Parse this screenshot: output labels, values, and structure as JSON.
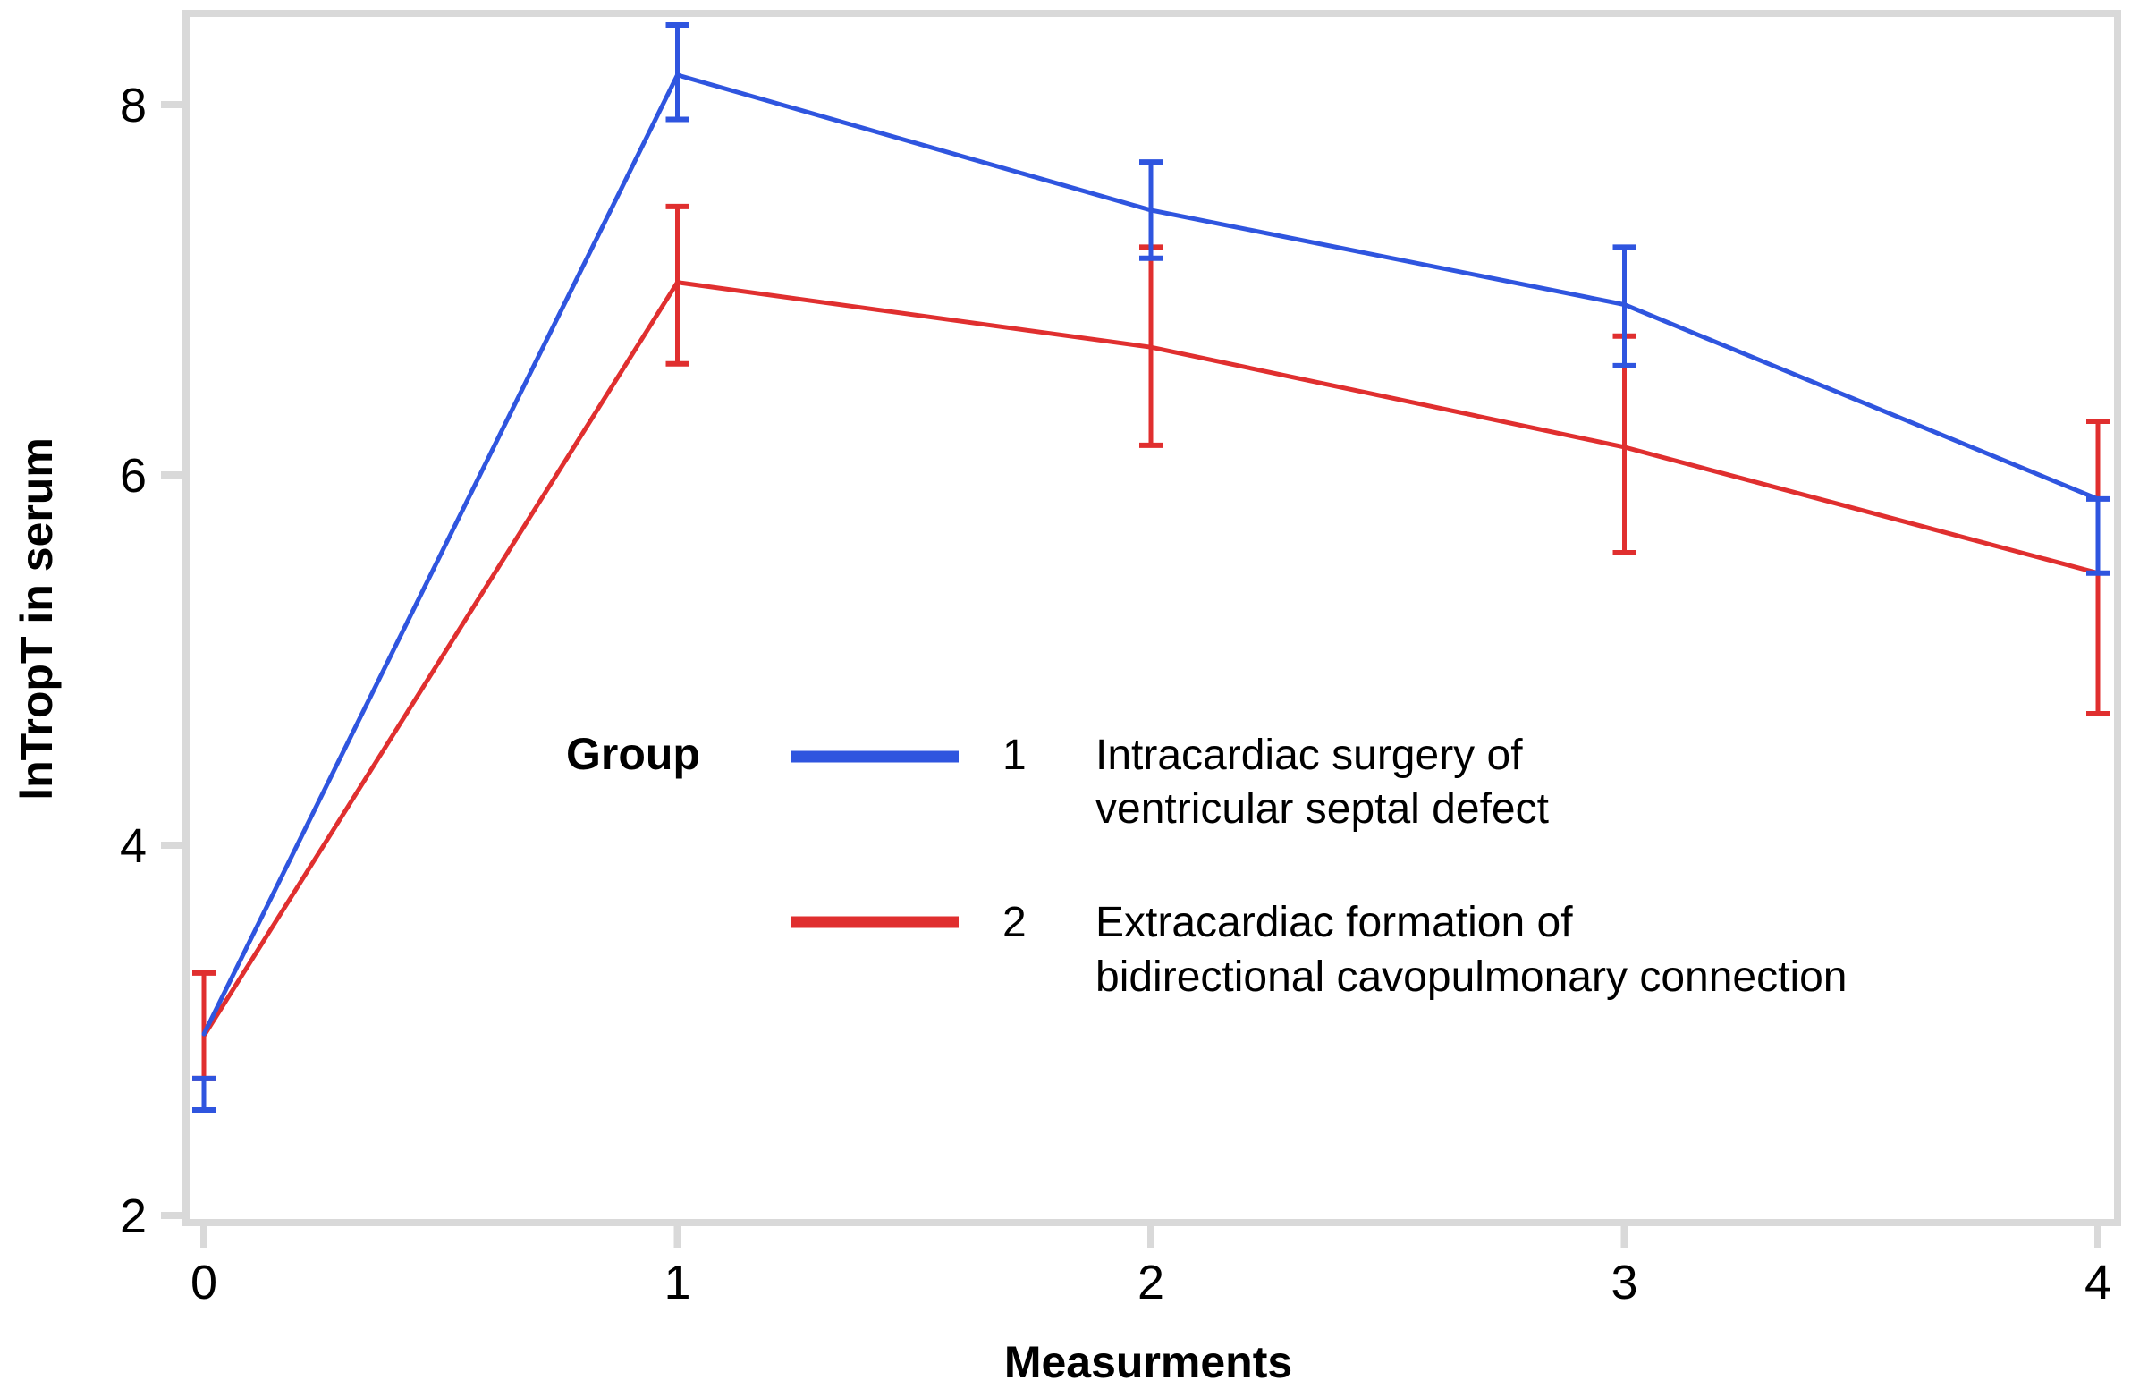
{
  "chart_data": {
    "type": "line",
    "title": "",
    "xlabel": "Measurments",
    "ylabel": "lnTropT in serum",
    "x": [
      0,
      1,
      2,
      3,
      4
    ],
    "x_ticks": [
      "0",
      "1",
      "2",
      "3",
      "4"
    ],
    "y_ticks": [
      "2",
      "4",
      "6",
      "8"
    ],
    "xlim": [
      0,
      4
    ],
    "ylim": [
      2,
      8.5
    ],
    "grid": false,
    "legend": {
      "title": "Group",
      "placement": "center",
      "entries": [
        {
          "key": "1",
          "lines": [
            "Intracardiac surgery of",
            "ventricular septal defect"
          ]
        },
        {
          "key": "2",
          "lines": [
            "Extracardiac formation of",
            "bidirectional cavopulmonary connection"
          ]
        }
      ]
    },
    "series": [
      {
        "name": "1",
        "label": "Intracardiac surgery of ventricular septal defect",
        "color": "#2f55df",
        "values": [
          2.98,
          8.16,
          7.43,
          6.92,
          5.87
        ],
        "error_low": [
          2.57,
          7.92,
          7.17,
          6.59,
          5.47
        ],
        "error_high": [
          2.74,
          8.43,
          7.69,
          7.23,
          5.87
        ]
      },
      {
        "name": "2",
        "label": "Extracardiac formation of bidirectional cavopulmonary connection",
        "color": "#e02f2f",
        "values": [
          2.97,
          7.04,
          6.69,
          6.15,
          5.47
        ],
        "error_low": [
          2.74,
          6.6,
          6.16,
          5.58,
          4.71
        ],
        "error_high": [
          3.31,
          7.45,
          7.23,
          6.75,
          6.29
        ]
      }
    ]
  },
  "colors": {
    "frame": "#d9d9d9",
    "text": "#000000"
  }
}
